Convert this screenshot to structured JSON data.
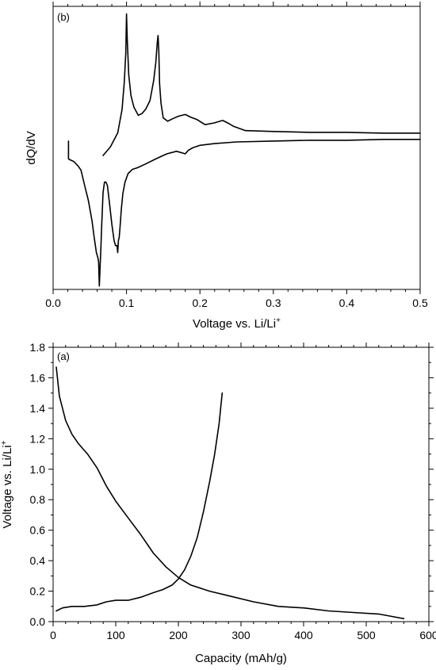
{
  "chart_data": [
    {
      "type": "line",
      "panel_label": "(b)",
      "xlabel": "Voltage vs. Li/Li",
      "xlabel_sup": "+",
      "ylabel": "dQ/dV",
      "xlim": [
        0.0,
        0.5
      ],
      "ylim": [
        0,
        100
      ],
      "x_ticks": [
        "0.0",
        "0.1",
        "0.2",
        "0.3",
        "0.4",
        "0.5"
      ],
      "y_ticks": [],
      "grid": false,
      "series": [
        {
          "x": [
            0.068,
            0.078,
            0.088,
            0.094,
            0.097,
            0.099,
            0.1,
            0.101,
            0.103,
            0.106,
            0.11,
            0.116,
            0.121,
            0.126,
            0.132,
            0.137,
            0.14,
            0.142,
            0.143,
            0.144,
            0.145,
            0.147,
            0.15,
            0.156,
            0.163,
            0.171,
            0.18,
            0.187,
            0.196,
            0.207,
            0.219,
            0.231,
            0.238,
            0.246,
            0.262,
            0.3,
            0.35,
            0.4,
            0.45,
            0.5
          ],
          "y": [
            47.3,
            50.3,
            55.3,
            63.6,
            73.3,
            83.6,
            97.3,
            88.5,
            75.8,
            68.5,
            64.4,
            61.5,
            62.1,
            63.6,
            66.7,
            73.9,
            80.3,
            87.6,
            89.7,
            84.5,
            72.7,
            65.8,
            60.6,
            59.4,
            60.3,
            61.2,
            61.8,
            60.9,
            60.0,
            58.2,
            58.8,
            59.7,
            58.8,
            57.6,
            56.1,
            55.8,
            55.5,
            55.5,
            55.2,
            55.2
          ]
        },
        {
          "x": [
            0.021,
            0.021,
            0.023,
            0.028,
            0.034,
            0.038,
            0.043,
            0.048,
            0.053,
            0.056,
            0.059,
            0.061,
            0.062,
            0.063,
            0.064,
            0.065,
            0.066,
            0.068,
            0.07,
            0.072,
            0.074,
            0.077,
            0.08,
            0.083,
            0.085,
            0.087,
            0.088,
            0.089,
            0.09,
            0.091,
            0.093,
            0.095,
            0.098,
            0.102,
            0.108,
            0.115,
            0.125,
            0.14,
            0.155,
            0.168,
            0.176,
            0.18,
            0.184,
            0.19,
            0.2,
            0.22,
            0.25,
            0.3,
            0.35,
            0.4,
            0.45,
            0.5
          ],
          "y": [
            52.4,
            46.1,
            45.8,
            45.2,
            43.6,
            42.1,
            36.7,
            31.5,
            24.2,
            18.2,
            13.0,
            11.2,
            9.7,
            1.2,
            8.2,
            14.2,
            21.2,
            34.2,
            37.9,
            37.9,
            36.7,
            30.0,
            23.0,
            17.3,
            15.5,
            15.5,
            13.0,
            17.3,
            18.2,
            21.5,
            28.5,
            33.9,
            37.9,
            40.9,
            42.4,
            43.0,
            44.2,
            46.1,
            47.9,
            48.8,
            48.2,
            47.9,
            49.1,
            50.0,
            50.9,
            51.5,
            52.1,
            52.4,
            52.7,
            52.7,
            53.0,
            53.0
          ]
        }
      ]
    },
    {
      "type": "line",
      "panel_label": "(a)",
      "xlabel": "Capacity (mAh/g)",
      "ylabel": "Voltage vs. Li/Li",
      "ylabel_sup": "+",
      "xlim": [
        0,
        600
      ],
      "ylim": [
        0.0,
        1.8
      ],
      "x_ticks": [
        "0",
        "100",
        "200",
        "300",
        "400",
        "500",
        "600"
      ],
      "y_ticks": [
        "0.0",
        "0.2",
        "0.4",
        "0.6",
        "0.8",
        "1.0",
        "1.2",
        "1.4",
        "1.6",
        "1.8"
      ],
      "grid": false,
      "series": [
        {
          "x": [
            5,
            10,
            20,
            30,
            40,
            55,
            70,
            85,
            100,
            120,
            140,
            160,
            180,
            200,
            220,
            250,
            280,
            320,
            360,
            400,
            440,
            480,
            520,
            560
          ],
          "y": [
            1.67,
            1.48,
            1.32,
            1.23,
            1.17,
            1.1,
            1.01,
            0.89,
            0.79,
            0.68,
            0.57,
            0.45,
            0.36,
            0.29,
            0.24,
            0.2,
            0.17,
            0.13,
            0.1,
            0.09,
            0.07,
            0.06,
            0.05,
            0.02
          ]
        },
        {
          "x": [
            5,
            15,
            30,
            50,
            70,
            85,
            100,
            120,
            140,
            160,
            175,
            190,
            200,
            210,
            220,
            230,
            240,
            250,
            258,
            265,
            270
          ],
          "y": [
            0.07,
            0.09,
            0.1,
            0.1,
            0.11,
            0.13,
            0.14,
            0.14,
            0.16,
            0.19,
            0.21,
            0.24,
            0.28,
            0.34,
            0.43,
            0.55,
            0.72,
            0.92,
            1.1,
            1.3,
            1.5
          ]
        }
      ]
    }
  ]
}
